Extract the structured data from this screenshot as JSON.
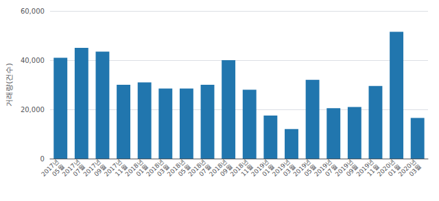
{
  "chart_data": {
    "type": "bar",
    "categories": [
      "2017년\n05월",
      "2017년\n07월",
      "2017년\n09월",
      "2017년\n11월",
      "2018년\n01월",
      "2018년\n03월",
      "2018년\n05월",
      "2018년\n07월",
      "2018년\n09월",
      "2018년\n11월",
      "2019년\n01월",
      "2019년\n03월",
      "2019년\n05월",
      "2019년\n07월",
      "2019년\n09월",
      "2019년\n11월",
      "2020년\n01월",
      "2020년\n03월"
    ],
    "values": [
      41000,
      45000,
      43500,
      30000,
      31000,
      28500,
      28500,
      30000,
      40000,
      28000,
      17500,
      12000,
      32000,
      20500,
      21000,
      29500,
      51500,
      16500
    ],
    "color": "#2176ae",
    "ylabel": "거래량(건수)",
    "ylim": [
      0,
      60000
    ],
    "yticks": [
      0,
      {
        "value": 20000,
        "label": "20,000"
      },
      {
        "value": 40000,
        "label": "40,000"
      },
      {
        "value": 60000,
        "label": "60,000"
      }
    ],
    "grid": true
  }
}
